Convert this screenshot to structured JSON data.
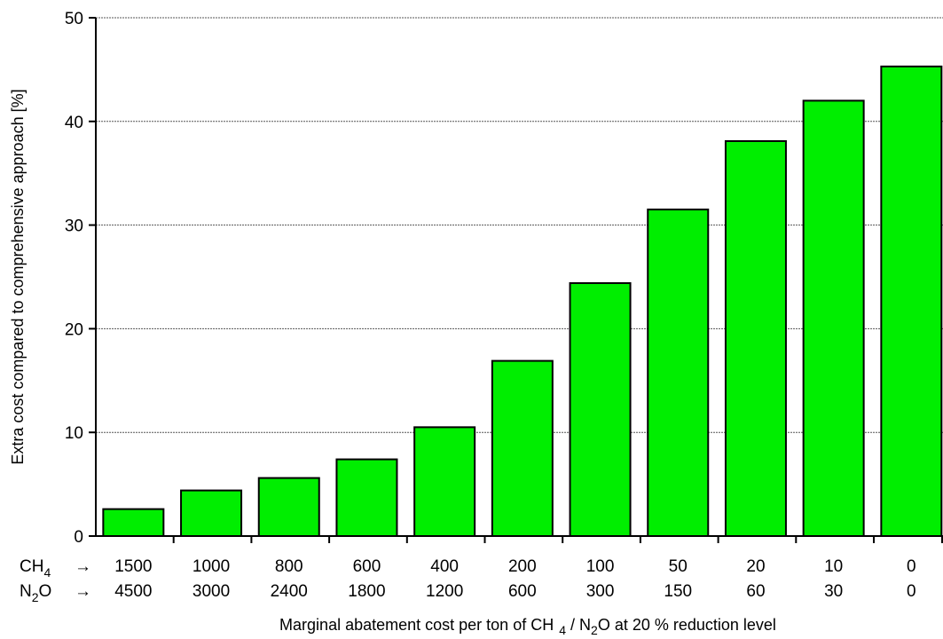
{
  "chart_data": {
    "type": "bar",
    "ylabel": "Extra cost compared to comprehensive approach [%]",
    "xlabel": {
      "prefix": "Marginal abatement cost per ton of CH",
      "sub1": "4",
      "mid": " / N",
      "sub2": "2",
      "suffix": "O at 20 % reduction level"
    },
    "ylim": [
      0,
      50
    ],
    "yticks": [
      "0",
      "10",
      "20",
      "30",
      "40",
      "50"
    ],
    "grid": true,
    "bar_color": "#00ee00",
    "row_labels": [
      {
        "base": "CH",
        "sub": "4",
        "arrow": "→"
      },
      {
        "base": "N",
        "sub": "2",
        "post": "O",
        "arrow": "→"
      }
    ],
    "categories_ch4": [
      "1500",
      "1000",
      "800",
      "600",
      "400",
      "200",
      "100",
      "50",
      "20",
      "10",
      "0"
    ],
    "categories_n2o": [
      "4500",
      "3000",
      "2400",
      "1800",
      "1200",
      "600",
      "300",
      "150",
      "60",
      "30",
      "0"
    ],
    "values": [
      2.6,
      4.4,
      5.6,
      7.4,
      10.5,
      16.9,
      24.4,
      31.5,
      38.1,
      42.0,
      45.3
    ]
  }
}
